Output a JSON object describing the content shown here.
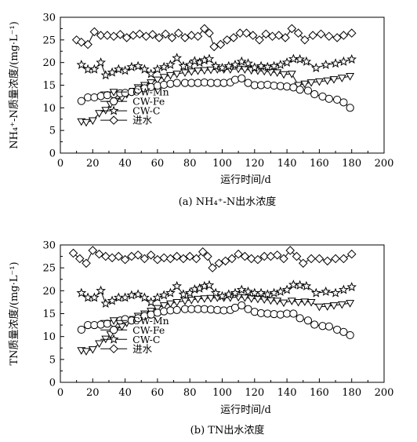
{
  "figure": {
    "panels": [
      {
        "caption": "(a) NH₄⁺-N出水浓度",
        "ylabel": "NH₄⁺-N质量浓度/(mg·L⁻¹)",
        "xlabel": "运行时间/d"
      },
      {
        "caption": "(b) TN出水浓度",
        "ylabel": "TN质量浓度/(mg·L⁻¹)",
        "xlabel": "运行时间/d"
      }
    ]
  },
  "chart_data": [
    {
      "type": "line",
      "title": "(a) NH₄⁺-N出水浓度",
      "xlabel": "运行时间/d",
      "ylabel": "NH₄⁺-N质量浓度/(mg·L⁻¹)",
      "xlim": [
        0,
        200
      ],
      "ylim": [
        0,
        30
      ],
      "xticks": [
        0,
        20,
        40,
        60,
        80,
        100,
        120,
        140,
        160,
        180,
        200
      ],
      "yticks": [
        0,
        5,
        10,
        15,
        20,
        25,
        30
      ],
      "grid": false,
      "legend_position": "center",
      "series": [
        {
          "name": "CW-Mn",
          "marker": "triangle-down",
          "x": [
            13,
            16,
            20,
            24,
            28,
            31,
            34,
            38,
            41,
            45,
            48,
            52,
            56,
            60,
            64,
            68,
            72,
            77,
            81,
            85,
            89,
            93,
            97,
            101,
            105,
            110,
            114,
            118,
            122,
            126,
            130,
            134,
            138,
            143,
            147,
            151,
            155,
            160,
            165,
            169,
            174,
            179
          ],
          "y": [
            7,
            6.8,
            7.2,
            8.8,
            9.5,
            10.8,
            11.5,
            12.2,
            13,
            13.7,
            14.5,
            15,
            15.6,
            16.2,
            16.8,
            17.2,
            17.5,
            17.8,
            18,
            18.2,
            18.3,
            18.4,
            18.5,
            18.5,
            18.5,
            18.6,
            18.5,
            18.3,
            18.2,
            18.1,
            17.9,
            17.8,
            17.4,
            17.5,
            15,
            15.3,
            15.6,
            15.8,
            16,
            16.3,
            16.6,
            17
          ]
        },
        {
          "name": "CW-Fe",
          "marker": "circle",
          "x": [
            13,
            17,
            21,
            25,
            29,
            33,
            37,
            40,
            44,
            48,
            52,
            56,
            60,
            64,
            68,
            72,
            77,
            81,
            85,
            89,
            93,
            97,
            101,
            105,
            108,
            112,
            116,
            120,
            124,
            128,
            132,
            136,
            140,
            144,
            148,
            153,
            157,
            162,
            166,
            171,
            175,
            179
          ],
          "y": [
            11.5,
            12.3,
            12.3,
            12.6,
            12.8,
            13,
            13.2,
            13.3,
            13.5,
            14,
            14.3,
            14.6,
            14.9,
            15.1,
            15.3,
            15.5,
            15.5,
            15.5,
            15.5,
            15.6,
            15.5,
            15.5,
            15.5,
            15.6,
            16.2,
            16.5,
            15.5,
            15,
            15,
            15.1,
            14.9,
            14.8,
            14.7,
            14.5,
            14,
            13.8,
            13,
            12.5,
            12,
            11.8,
            11.2,
            10
          ]
        },
        {
          "name": "CW-C",
          "marker": "star",
          "x": [
            13,
            17,
            21,
            25,
            28,
            32,
            36,
            40,
            44,
            48,
            52,
            56,
            60,
            64,
            68,
            72,
            76,
            80,
            83,
            86,
            89,
            92,
            96,
            100,
            104,
            108,
            112,
            116,
            120,
            124,
            128,
            132,
            136,
            140,
            144,
            148,
            152,
            158,
            164,
            170,
            175,
            180
          ],
          "y": [
            19.5,
            18.5,
            18.5,
            20,
            17.2,
            17.8,
            18.5,
            18.2,
            19,
            19.2,
            18.5,
            17.5,
            18.5,
            19,
            19.5,
            21,
            19.2,
            19.5,
            20.3,
            20,
            20.5,
            20.8,
            19.2,
            18.8,
            19.2,
            19.5,
            20.2,
            19.8,
            18.9,
            19.2,
            19,
            19.2,
            19.5,
            20,
            20.8,
            20.7,
            20.2,
            18.8,
            19.5,
            19.8,
            20.2,
            20.7
          ]
        },
        {
          "name": "进水",
          "marker": "diamond",
          "x": [
            10,
            13,
            17,
            21,
            25,
            29,
            33,
            37,
            41,
            45,
            49,
            53,
            57,
            61,
            65,
            69,
            73,
            77,
            81,
            85,
            89,
            92,
            95,
            99,
            103,
            107,
            111,
            115,
            119,
            123,
            127,
            131,
            135,
            139,
            143,
            147,
            151,
            156,
            161,
            166,
            171,
            175,
            180
          ],
          "y": [
            25,
            24.5,
            24,
            26.8,
            26,
            26,
            25.8,
            26.2,
            25.5,
            26,
            26.3,
            25.8,
            26.2,
            25.5,
            26.3,
            25.5,
            26.5,
            25.5,
            26,
            25.8,
            27.5,
            26.5,
            23.5,
            24,
            25,
            25.5,
            26.5,
            26.5,
            26,
            25,
            26.3,
            25.8,
            26,
            25.5,
            27.5,
            26.5,
            25,
            26,
            26.3,
            25.8,
            25.5,
            26,
            26.5
          ]
        }
      ]
    },
    {
      "type": "line",
      "title": "(b) TN出水浓度",
      "xlabel": "运行时间/d",
      "ylabel": "TN质量浓度/(mg·L⁻¹)",
      "xlim": [
        0,
        200
      ],
      "ylim": [
        0,
        30
      ],
      "xticks": [
        0,
        20,
        40,
        60,
        80,
        100,
        120,
        140,
        160,
        180,
        200
      ],
      "yticks": [
        0,
        5,
        10,
        15,
        20,
        25,
        30
      ],
      "grid": false,
      "legend_position": "center",
      "series": [
        {
          "name": "CW-Mn",
          "marker": "triangle-down",
          "x": [
            13,
            16,
            20,
            24,
            28,
            31,
            34,
            38,
            41,
            45,
            48,
            52,
            56,
            60,
            64,
            68,
            72,
            77,
            81,
            85,
            89,
            93,
            97,
            101,
            105,
            110,
            114,
            118,
            122,
            126,
            130,
            134,
            138,
            143,
            147,
            151,
            155,
            160,
            165,
            169,
            174,
            179
          ],
          "y": [
            7,
            6.8,
            7.2,
            8.5,
            9.5,
            10.5,
            11.5,
            12.2,
            13,
            13.8,
            14.5,
            15,
            15.6,
            16.2,
            16.8,
            17.2,
            17.5,
            17.8,
            18,
            18.2,
            18.3,
            18.4,
            18.5,
            18.5,
            18.5,
            18.6,
            18.5,
            18.3,
            18.2,
            18.1,
            17.9,
            17.8,
            17.4,
            17.8,
            17.5,
            17.6,
            17.5,
            16.5,
            16.6,
            16.8,
            17,
            17.3
          ]
        },
        {
          "name": "CW-Fe",
          "marker": "circle",
          "x": [
            13,
            17,
            21,
            25,
            29,
            33,
            37,
            40,
            44,
            48,
            52,
            56,
            60,
            64,
            68,
            72,
            77,
            81,
            85,
            89,
            93,
            97,
            101,
            105,
            108,
            112,
            116,
            120,
            124,
            128,
            132,
            136,
            140,
            144,
            148,
            153,
            157,
            162,
            166,
            171,
            175,
            179
          ],
          "y": [
            11.5,
            12.5,
            12.5,
            12.6,
            12.8,
            13,
            13.5,
            13.8,
            13.5,
            14,
            14.5,
            14.8,
            15.2,
            15.5,
            15.7,
            15.8,
            16,
            16,
            16,
            16,
            15.9,
            15.8,
            15.7,
            15.8,
            16.3,
            16.8,
            16,
            15.4,
            15.1,
            15,
            14.9,
            14.8,
            15,
            15,
            14,
            13.5,
            12.6,
            12.3,
            12.2,
            11.5,
            11,
            10.3
          ]
        },
        {
          "name": "CW-C",
          "marker": "star",
          "x": [
            13,
            17,
            21,
            25,
            28,
            32,
            36,
            40,
            44,
            48,
            52,
            56,
            60,
            64,
            68,
            72,
            76,
            80,
            83,
            86,
            89,
            92,
            96,
            100,
            104,
            108,
            112,
            116,
            120,
            124,
            128,
            132,
            136,
            140,
            144,
            148,
            152,
            158,
            164,
            170,
            175,
            180
          ],
          "y": [
            19.5,
            18.5,
            18.5,
            20,
            17.2,
            17.8,
            18.5,
            18.5,
            19,
            19.2,
            18.5,
            17.5,
            18.5,
            19,
            19.5,
            21,
            19.2,
            19.5,
            20.3,
            20.5,
            21,
            21.2,
            19.5,
            18.8,
            19.2,
            19.5,
            20.2,
            19.8,
            19.5,
            19.5,
            19.2,
            19.5,
            19.8,
            20.2,
            21.3,
            21.2,
            21,
            19.5,
            19.8,
            19.5,
            20.2,
            20.8
          ]
        },
        {
          "name": "进水",
          "marker": "diamond",
          "x": [
            8,
            12,
            16,
            20,
            24,
            28,
            32,
            36,
            40,
            44,
            48,
            52,
            56,
            60,
            64,
            68,
            72,
            76,
            80,
            84,
            88,
            91,
            94,
            98,
            102,
            106,
            110,
            114,
            118,
            122,
            126,
            130,
            134,
            138,
            142,
            146,
            150,
            155,
            160,
            165,
            170,
            175,
            180
          ],
          "y": [
            28.2,
            27,
            26,
            28.8,
            28,
            27.5,
            27.2,
            27.5,
            26.8,
            27.5,
            27.8,
            27,
            27.8,
            26.8,
            27.2,
            27,
            27.5,
            27,
            27.5,
            27,
            28.5,
            27.5,
            25,
            26,
            26.5,
            27,
            28,
            27.5,
            27,
            26.8,
            27.5,
            27.5,
            27.8,
            27,
            28.8,
            27.5,
            26,
            27,
            27,
            26.5,
            27,
            27,
            28
          ]
        }
      ]
    }
  ]
}
